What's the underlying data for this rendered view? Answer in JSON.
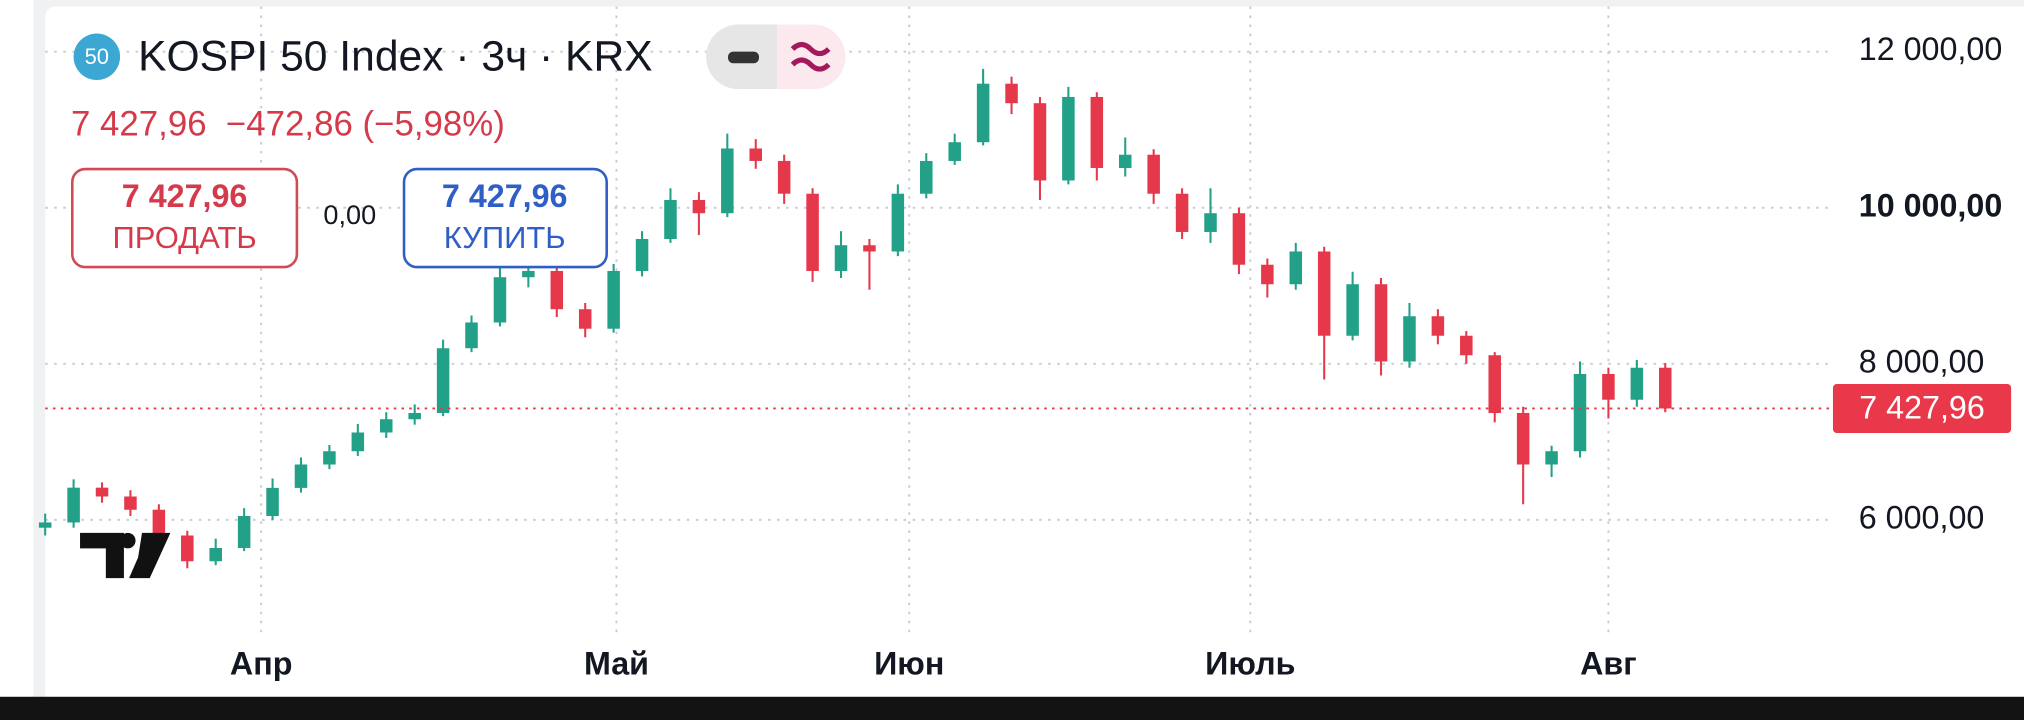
{
  "header": {
    "badge": "50",
    "title": "KOSPI 50 Index · 3ч · KRX",
    "quote": "7 427,96  −472,86 (−5,98%)",
    "sell_price": "7 427,96",
    "sell_label": "ПРОДАТЬ",
    "spread": "0,00",
    "buy_price": "7 427,96",
    "buy_label": "КУПИТЬ"
  },
  "chart_data": {
    "type": "candlestick",
    "open": [
      5900,
      5967,
      6413,
      6300,
      6130,
      5800,
      5470,
      5640,
      6050,
      6410,
      6710,
      6880,
      7120,
      7290,
      7370,
      8200,
      8530,
      9110,
      9190,
      8700,
      8450,
      9190,
      9600,
      10100,
      9930,
      10760,
      10600,
      10180,
      9190,
      9520,
      9440,
      10180,
      10600,
      10840,
      11590,
      11340,
      10350,
      11420,
      10510,
      10680,
      10180,
      9690,
      9930,
      9270,
      9020,
      9440,
      8360,
      9020,
      8030,
      8610,
      8360,
      8110,
      7370,
      6710,
      6880,
      7870,
      7540,
      7950
    ],
    "high": [
      6080,
      6520,
      6480,
      6380,
      6200,
      5860,
      5760,
      6150,
      6530,
      6800,
      6960,
      7230,
      7380,
      7480,
      8310,
      8620,
      9250,
      9420,
      9280,
      8780,
      9280,
      9700,
      10250,
      10200,
      10950,
      10880,
      10680,
      10250,
      9700,
      9600,
      10300,
      10700,
      10950,
      11780,
      11680,
      11420,
      11550,
      11480,
      10900,
      10750,
      10250,
      10250,
      10000,
      9350,
      9550,
      9500,
      9180,
      9100,
      8780,
      8700,
      8420,
      8150,
      7450,
      6950,
      8030,
      7950,
      8050,
      8010
    ],
    "low": [
      5800,
      5900,
      6220,
      6050,
      5720,
      5380,
      5420,
      5600,
      6000,
      6350,
      6650,
      6820,
      7050,
      7220,
      7330,
      8150,
      8480,
      8980,
      8600,
      8340,
      8400,
      9120,
      9550,
      9650,
      9880,
      10500,
      10050,
      9050,
      9100,
      8950,
      9380,
      10120,
      10550,
      10800,
      11200,
      10100,
      10300,
      10350,
      10400,
      10050,
      9600,
      9550,
      9150,
      8850,
      8950,
      7800,
      8300,
      7850,
      7950,
      8250,
      8000,
      7250,
      6200,
      6550,
      6800,
      7300,
      7450,
      7380
    ],
    "close": [
      5967,
      6413,
      6300,
      6130,
      5800,
      5470,
      5640,
      6050,
      6410,
      6710,
      6880,
      7120,
      7290,
      7370,
      8200,
      8530,
      9110,
      9190,
      8700,
      8450,
      9190,
      9600,
      10100,
      9930,
      10760,
      10600,
      10180,
      9190,
      9520,
      9440,
      10180,
      10600,
      10840,
      11590,
      11340,
      10350,
      11420,
      10510,
      10680,
      10180,
      9690,
      9930,
      9270,
      9020,
      9440,
      8360,
      9020,
      8030,
      8610,
      8360,
      8110,
      7370,
      6710,
      6880,
      7870,
      7540,
      7950,
      7427.96
    ],
    "up_color": "#22a088",
    "down_color": "#e5394b",
    "xlim": [
      0,
      62.9
    ],
    "xticks": [
      {
        "value": 7.6,
        "label": "Апр"
      },
      {
        "value": 20.1,
        "label": "Май"
      },
      {
        "value": 30.4,
        "label": "Июн"
      },
      {
        "value": 42.4,
        "label": "Июль"
      },
      {
        "value": 55.0,
        "label": "Авг"
      }
    ],
    "ylim": [
      4560,
      12580
    ],
    "yticks": [
      {
        "value": 6000,
        "label": "6 000,00"
      },
      {
        "value": 8000,
        "label": "8 000,00"
      },
      {
        "value": 10000,
        "label": "10 000,00"
      },
      {
        "value": 12000,
        "label": "12 000,00"
      }
    ],
    "grid": true,
    "last_price": {
      "value": 7427.96,
      "label": "7 427,96",
      "color": "#e8384a"
    }
  }
}
